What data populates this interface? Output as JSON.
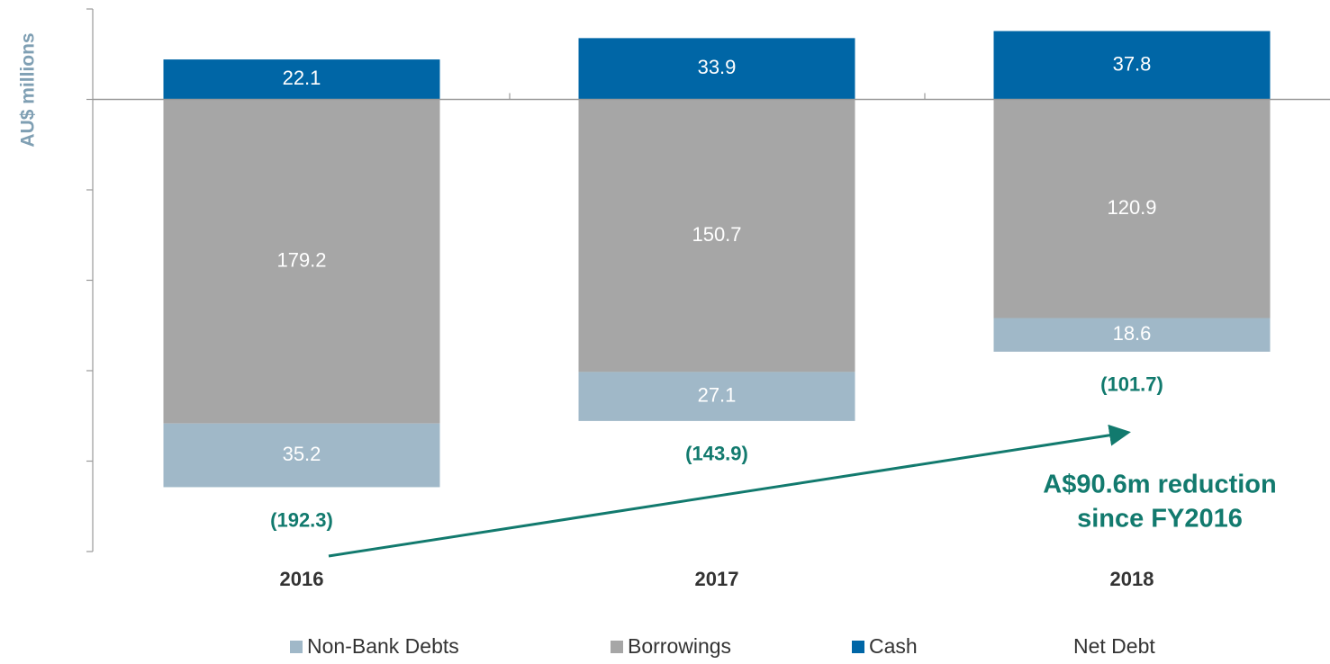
{
  "chart_data": {
    "type": "bar",
    "stacked": true,
    "y_label": "AU$ millions",
    "categories": [
      "2016",
      "2017",
      "2018"
    ],
    "series": [
      {
        "name": "Non-Bank Debts",
        "color": "#a0b8c8",
        "values": [
          -35.2,
          -27.1,
          -18.6
        ],
        "value_labels": [
          "35.2",
          "27.1",
          "18.6"
        ]
      },
      {
        "name": "Borrowings",
        "color": "#a6a6a6",
        "values": [
          -179.2,
          -150.7,
          -120.9
        ],
        "value_labels": [
          "179.2",
          "150.7",
          "120.9"
        ]
      },
      {
        "name": "Cash",
        "color": "#0066a6",
        "values": [
          22.1,
          33.9,
          37.8
        ],
        "value_labels": [
          "22.1",
          "33.9",
          "37.8"
        ]
      },
      {
        "name": "Net Debt",
        "color": "#127a6e",
        "type": "label",
        "values": [
          -192.3,
          -143.9,
          -101.7
        ],
        "value_labels": [
          "(192.3)",
          "(143.9)",
          "(101.7)"
        ]
      }
    ],
    "annotation": [
      "A$90.6m reduction",
      "since FY2016"
    ],
    "ylim": [
      -250,
      50
    ],
    "yticks": [
      50,
      0,
      -50,
      -100,
      -150,
      -200,
      -250
    ]
  }
}
